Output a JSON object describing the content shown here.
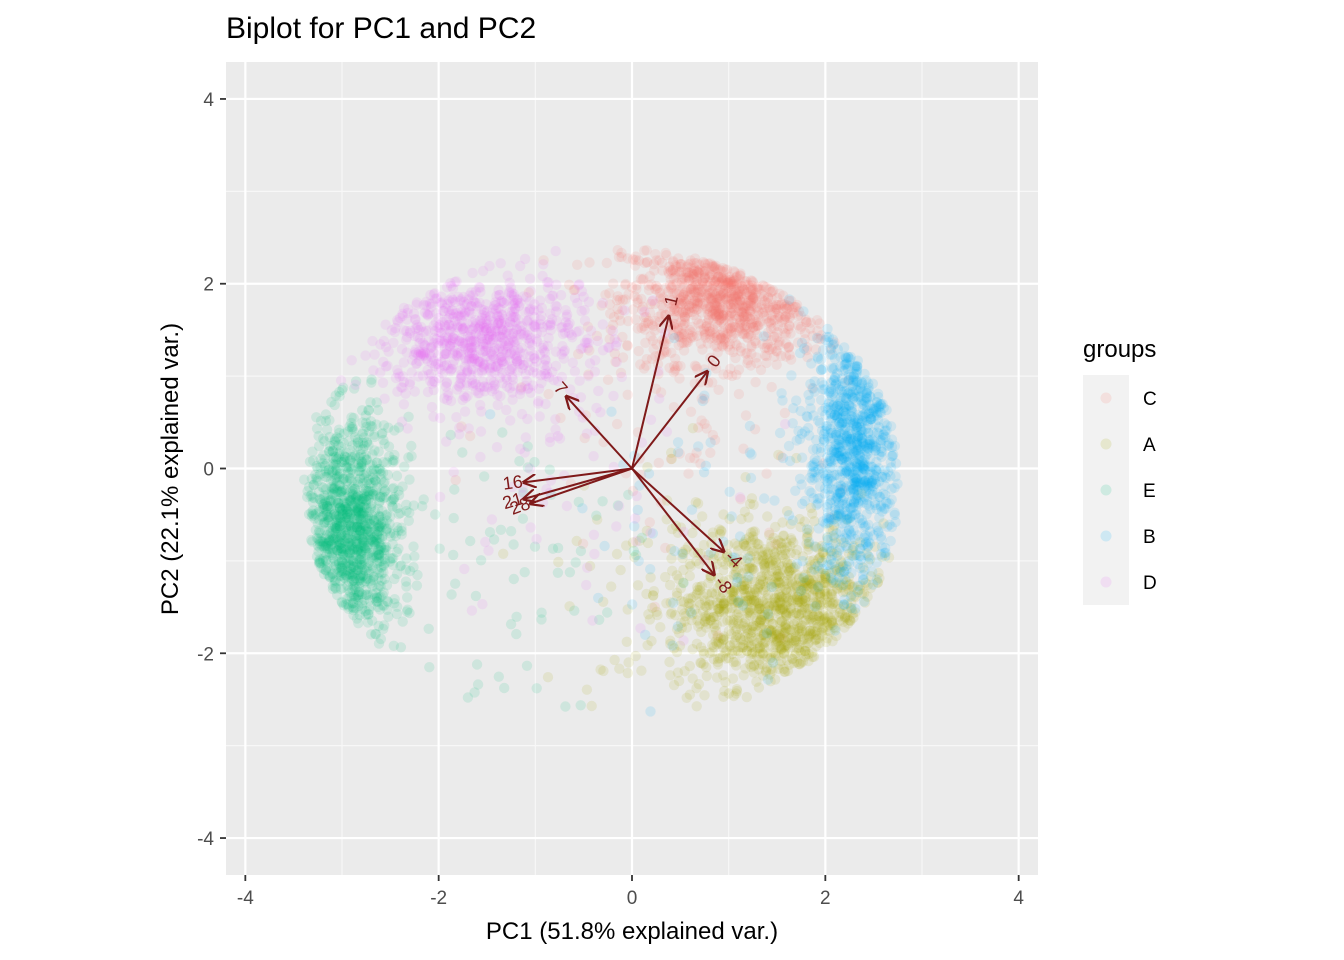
{
  "chart_data": {
    "type": "scatter",
    "subtype": "pca-biplot",
    "title": "Biplot for PC1 and PC2",
    "xlabel": "PC1 (51.8% explained var.)",
    "ylabel": "PC2 (22.1% explained var.)",
    "xlim": [
      -4.2,
      4.2
    ],
    "ylim": [
      -4.4,
      4.4
    ],
    "x_ticks": [
      -4,
      -2,
      0,
      2,
      4
    ],
    "y_ticks": [
      -4,
      -2,
      0,
      2,
      4
    ],
    "grid": true,
    "point_alpha": 0.12,
    "legend": {
      "title": "groups",
      "position": "right",
      "entries": [
        {
          "name": "C",
          "color": "#F8766D"
        },
        {
          "name": "A",
          "color": "#A3A500"
        },
        {
          "name": "E",
          "color": "#00BF7D"
        },
        {
          "name": "B",
          "color": "#00B0F6"
        },
        {
          "name": "D",
          "color": "#E76BF3"
        }
      ]
    },
    "series": [
      {
        "name": "C",
        "color": "#F8766D",
        "center": [
          1.0,
          1.85
        ],
        "approx_points": 900
      },
      {
        "name": "A",
        "color": "#A3A500",
        "center": [
          1.5,
          -1.5
        ],
        "approx_points": 1100
      },
      {
        "name": "E",
        "color": "#00BF7D",
        "center": [
          -2.9,
          -0.7
        ],
        "approx_points": 1100
      },
      {
        "name": "B",
        "color": "#00B0F6",
        "center": [
          2.3,
          0.2
        ],
        "approx_points": 900
      },
      {
        "name": "D",
        "color": "#E76BF3",
        "center": [
          -1.6,
          1.4
        ],
        "approx_points": 800
      }
    ],
    "loadings": [
      {
        "label": "1",
        "x": 0.38,
        "y": 1.65
      },
      {
        "label": "0",
        "x": 0.78,
        "y": 1.05
      },
      {
        "label": "7",
        "x": -0.68,
        "y": 0.78
      },
      {
        "label": "16",
        "x": -1.12,
        "y": -0.15
      },
      {
        "label": "21",
        "x": -1.12,
        "y": -0.33
      },
      {
        "label": "28",
        "x": -1.05,
        "y": -0.38
      },
      {
        "label": "-4",
        "x": 0.95,
        "y": -0.9
      },
      {
        "label": "-8",
        "x": 0.85,
        "y": -1.15
      }
    ],
    "loading_color": "#7f1a1a"
  }
}
